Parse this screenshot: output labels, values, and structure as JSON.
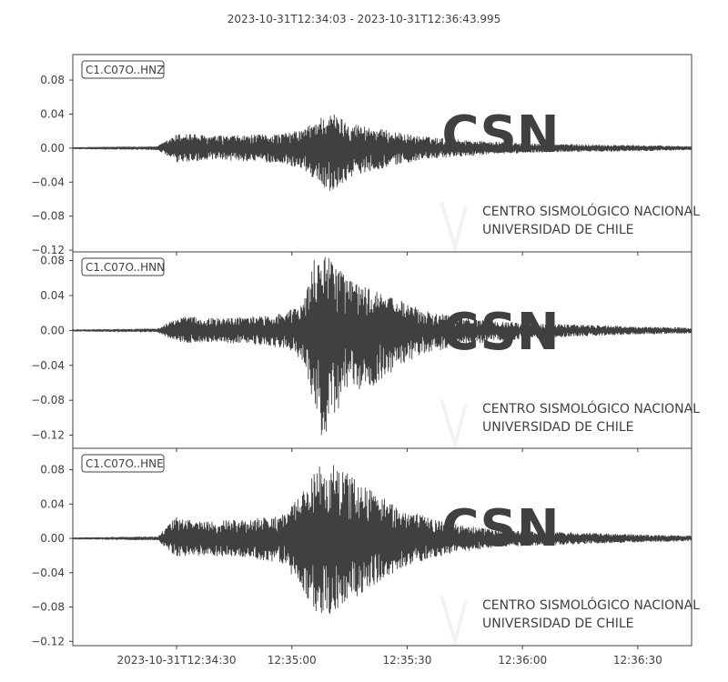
{
  "figure": {
    "title": "2023-10-31T12:34:03  -  2023-10-31T12:36:43.995",
    "trace_color": "#404040",
    "watermark": {
      "logo_text": "CSN",
      "line1": "CENTRO SISMOLÓGICO NACIONAL",
      "line2": "UNIVERSIDAD DE CHILE",
      "color": "#f2f2f2"
    }
  },
  "chart_data": {
    "type": "line",
    "x_axis": {
      "start": "2023-10-31T12:34:03",
      "end": "2023-10-31T12:36:43.995",
      "tick_labels": [
        "2023-10-31T12:34:30",
        "12:35:00",
        "12:35:30",
        "12:36:00",
        "12:36:30"
      ]
    },
    "panels": [
      {
        "label": "C1.C07O..HNZ",
        "ylim": [
          -0.122,
          0.11
        ],
        "yticks": [
          0.08,
          0.04,
          0.0,
          -0.04,
          -0.08,
          -0.12
        ],
        "ytick_labels": [
          "0.08",
          "0.04",
          "0.00",
          "−0.04",
          "−0.08",
          "−0.12"
        ],
        "envelope": {
          "time_offsets_s": [
            0,
            22,
            27,
            30,
            35,
            45,
            55,
            60,
            65,
            68,
            72,
            78,
            85,
            90,
            100,
            110,
            120,
            135,
            150,
            161
          ],
          "max": [
            0.0008,
            0.002,
            0.016,
            0.018,
            0.014,
            0.015,
            0.017,
            0.022,
            0.038,
            0.04,
            0.03,
            0.024,
            0.018,
            0.014,
            0.01,
            0.007,
            0.005,
            0.004,
            0.003,
            0.002
          ],
          "min": [
            -0.0008,
            -0.002,
            -0.017,
            -0.016,
            -0.014,
            -0.015,
            -0.018,
            -0.025,
            -0.046,
            -0.052,
            -0.034,
            -0.026,
            -0.019,
            -0.014,
            -0.01,
            -0.007,
            -0.005,
            -0.004,
            -0.003,
            -0.002
          ]
        }
      },
      {
        "label": "C1.C07O..HNN",
        "ylim": [
          -0.135,
          0.09
        ],
        "yticks": [
          0.08,
          0.04,
          0.0,
          -0.04,
          -0.08,
          -0.12
        ],
        "ytick_labels": [
          "0.08",
          "0.04",
          "0.00",
          "−0.04",
          "−0.08",
          "−0.12"
        ],
        "envelope": {
          "time_offsets_s": [
            0,
            22,
            27,
            30,
            35,
            45,
            55,
            60,
            63,
            65,
            68,
            72,
            78,
            85,
            92,
            100,
            110,
            120,
            135,
            150,
            161
          ],
          "max": [
            0.0008,
            0.002,
            0.014,
            0.016,
            0.014,
            0.015,
            0.02,
            0.03,
            0.085,
            0.088,
            0.078,
            0.06,
            0.046,
            0.035,
            0.022,
            0.016,
            0.01,
            0.008,
            0.006,
            0.004,
            0.003
          ],
          "min": [
            -0.0008,
            -0.002,
            -0.013,
            -0.014,
            -0.013,
            -0.015,
            -0.02,
            -0.035,
            -0.095,
            -0.125,
            -0.1,
            -0.07,
            -0.065,
            -0.04,
            -0.026,
            -0.018,
            -0.012,
            -0.009,
            -0.006,
            -0.004,
            -0.003
          ]
        }
      },
      {
        "label": "C1.C07O..HNE",
        "ylim": [
          -0.125,
          0.105
        ],
        "yticks": [
          0.08,
          0.04,
          0.0,
          -0.04,
          -0.08,
          -0.12
        ],
        "ytick_labels": [
          "0.08",
          "0.04",
          "0.00",
          "−0.04",
          "−0.08",
          "−0.12"
        ],
        "envelope": {
          "time_offsets_s": [
            0,
            22,
            27,
            30,
            35,
            45,
            55,
            60,
            64,
            67,
            70,
            75,
            80,
            85,
            92,
            100,
            110,
            120,
            135,
            150,
            161
          ],
          "max": [
            0.0008,
            0.002,
            0.025,
            0.022,
            0.02,
            0.022,
            0.028,
            0.055,
            0.085,
            0.088,
            0.08,
            0.065,
            0.05,
            0.035,
            0.025,
            0.016,
            0.01,
            0.008,
            0.006,
            0.004,
            0.003
          ],
          "min": [
            -0.0008,
            -0.002,
            -0.022,
            -0.02,
            -0.02,
            -0.022,
            -0.03,
            -0.062,
            -0.09,
            -0.095,
            -0.08,
            -0.065,
            -0.05,
            -0.035,
            -0.025,
            -0.016,
            -0.01,
            -0.008,
            -0.006,
            -0.004,
            -0.003
          ]
        }
      }
    ]
  }
}
